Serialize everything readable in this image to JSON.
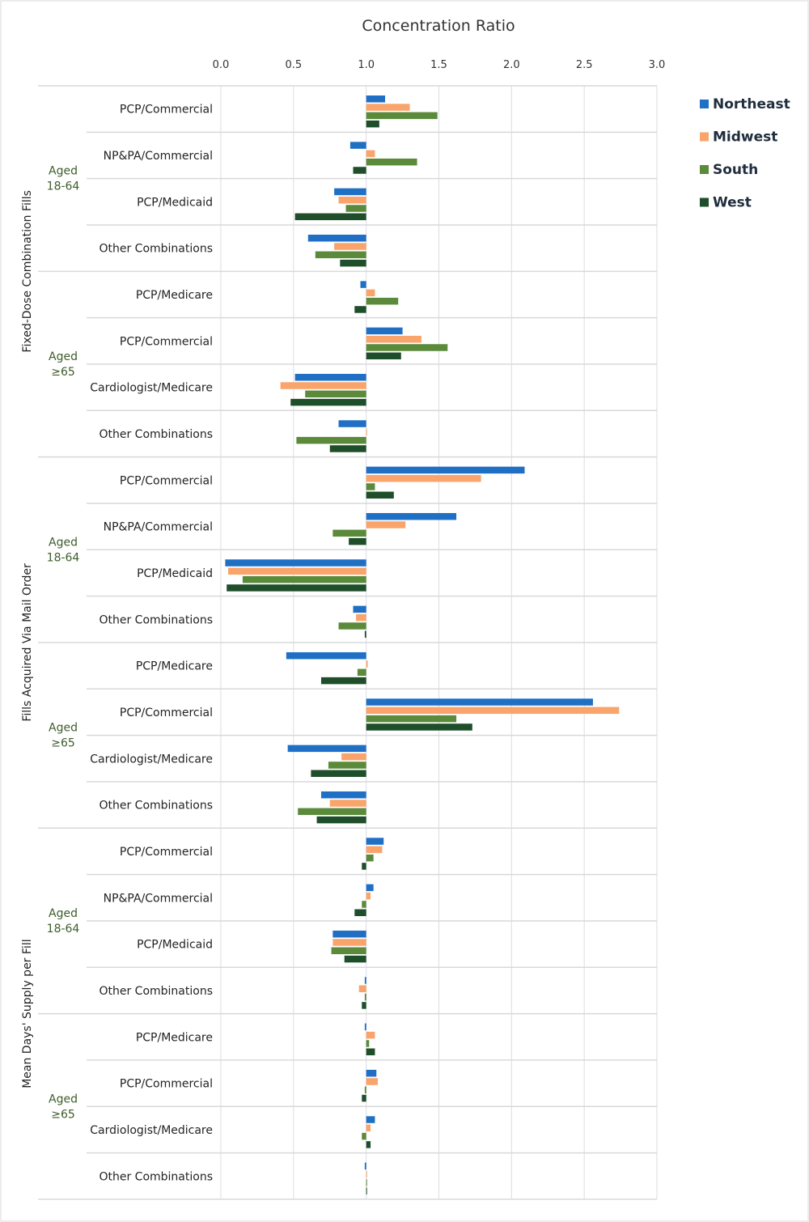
{
  "chart_data": {
    "type": "bar",
    "orientation": "horizontal",
    "title": "Concentration Ratio",
    "xlim": [
      0,
      3
    ],
    "xticks": [
      "0.0",
      "0.5",
      "1.0",
      "1.5",
      "2.0",
      "2.5",
      "3.0"
    ],
    "baseline": 1.0,
    "grid": true,
    "legend_position": "right",
    "series": [
      {
        "name": "Northeast",
        "color": "#1f6fc5"
      },
      {
        "name": "Midwest",
        "color": "#f9a46b"
      },
      {
        "name": "South",
        "color": "#5a8a3a"
      },
      {
        "name": "West",
        "color": "#1f4e2a"
      }
    ],
    "sections": [
      {
        "label": "Fixed-Dose Combination Fills",
        "groups": [
          {
            "label": "Aged 18-64",
            "rows": [
              {
                "category": "PCP/Commercial",
                "values": [
                  1.13,
                  1.3,
                  1.49,
                  1.09
                ]
              },
              {
                "category": "NP&PA/Commercial",
                "values": [
                  0.89,
                  1.06,
                  1.35,
                  0.91
                ]
              },
              {
                "category": "PCP/Medicaid",
                "values": [
                  0.78,
                  0.81,
                  0.86,
                  0.51
                ]
              },
              {
                "category": "Other Combinations",
                "values": [
                  0.6,
                  0.78,
                  0.65,
                  0.82
                ]
              }
            ]
          },
          {
            "label": "Aged ≥65",
            "rows": [
              {
                "category": "PCP/Medicare",
                "values": [
                  0.96,
                  1.06,
                  1.22,
                  0.92
                ]
              },
              {
                "category": "PCP/Commercial",
                "values": [
                  1.25,
                  1.38,
                  1.56,
                  1.24
                ]
              },
              {
                "category": "Cardiologist/Medicare",
                "values": [
                  0.51,
                  0.41,
                  0.58,
                  0.48
                ]
              },
              {
                "category": "Other Combinations",
                "values": [
                  0.81,
                  1.0,
                  0.52,
                  0.75
                ]
              }
            ]
          }
        ]
      },
      {
        "label": "Fills Acquired Via Mail Order",
        "groups": [
          {
            "label": "Aged 18-64",
            "rows": [
              {
                "category": "PCP/Commercial",
                "values": [
                  2.09,
                  1.79,
                  1.06,
                  1.19
                ]
              },
              {
                "category": "NP&PA/Commercial",
                "values": [
                  1.62,
                  1.27,
                  0.77,
                  0.88
                ]
              },
              {
                "category": "PCP/Medicaid",
                "values": [
                  0.03,
                  0.05,
                  0.15,
                  0.04
                ]
              },
              {
                "category": "Other Combinations",
                "values": [
                  0.91,
                  0.93,
                  0.81,
                  0.99
                ]
              }
            ]
          },
          {
            "label": "Aged ≥65",
            "rows": [
              {
                "category": "PCP/Medicare",
                "values": [
                  0.45,
                  1.01,
                  0.94,
                  0.69
                ]
              },
              {
                "category": "PCP/Commercial",
                "values": [
                  2.56,
                  2.74,
                  1.62,
                  1.73
                ]
              },
              {
                "category": "Cardiologist/Medicare",
                "values": [
                  0.46,
                  0.83,
                  0.74,
                  0.62
                ]
              },
              {
                "category": "Other Combinations",
                "values": [
                  0.69,
                  0.75,
                  0.53,
                  0.66
                ]
              }
            ]
          }
        ]
      },
      {
        "label": "Mean Days' Supply per Fill",
        "groups": [
          {
            "label": "Aged 18-64",
            "rows": [
              {
                "category": "PCP/Commercial",
                "values": [
                  1.12,
                  1.11,
                  1.05,
                  0.97
                ]
              },
              {
                "category": "NP&PA/Commercial",
                "values": [
                  1.05,
                  1.03,
                  0.97,
                  0.92
                ]
              },
              {
                "category": "PCP/Medicaid",
                "values": [
                  0.77,
                  0.77,
                  0.76,
                  0.85
                ]
              },
              {
                "category": "Other Combinations",
                "values": [
                  0.99,
                  0.95,
                  0.99,
                  0.97
                ]
              }
            ]
          },
          {
            "label": "Aged ≥65",
            "rows": [
              {
                "category": "PCP/Medicare",
                "values": [
                  0.99,
                  1.06,
                  1.02,
                  1.06
                ]
              },
              {
                "category": "PCP/Commercial",
                "values": [
                  1.07,
                  1.08,
                  0.99,
                  0.97
                ]
              },
              {
                "category": "Cardiologist/Medicare",
                "values": [
                  1.06,
                  1.03,
                  0.97,
                  1.03
                ]
              },
              {
                "category": "Other Combinations",
                "values": [
                  0.99,
                  1.0,
                  1.0,
                  1.0
                ]
              }
            ]
          }
        ]
      }
    ]
  }
}
